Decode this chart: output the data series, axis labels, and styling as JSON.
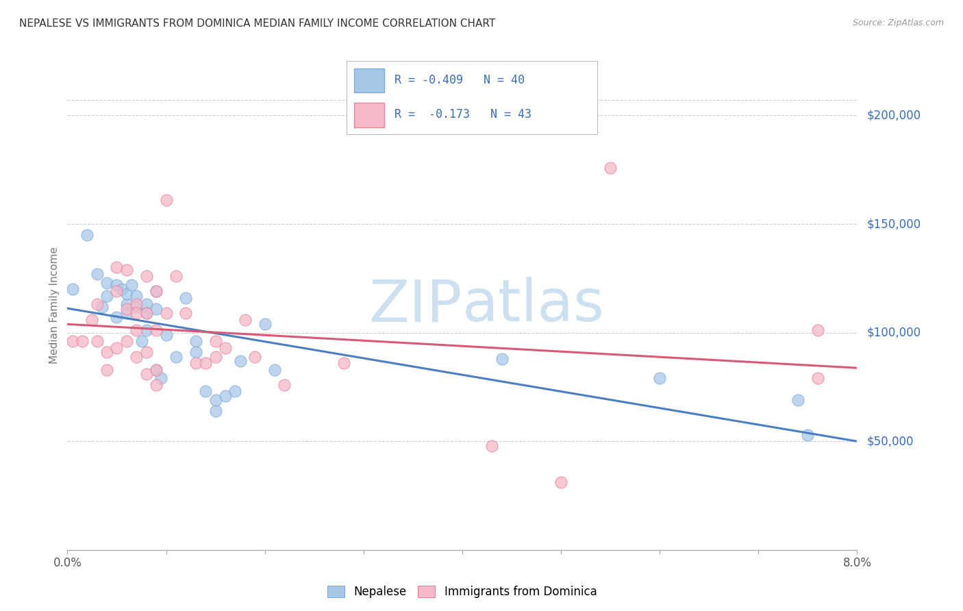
{
  "title": "NEPALESE VS IMMIGRANTS FROM DOMINICA MEDIAN FAMILY INCOME CORRELATION CHART",
  "source": "Source: ZipAtlas.com",
  "ylabel": "Median Family Income",
  "xlim": [
    0.0,
    0.08
  ],
  "ylim": [
    0,
    225000
  ],
  "xticks": [
    0.0,
    0.01,
    0.02,
    0.03,
    0.04,
    0.05,
    0.06,
    0.07,
    0.08
  ],
  "xticklabels": [
    "0.0%",
    "",
    "",
    "",
    "",
    "",
    "",
    "",
    "8.0%"
  ],
  "ytick_positions": [
    50000,
    100000,
    150000,
    200000
  ],
  "ytick_labels": [
    "$50,000",
    "$100,000",
    "$150,000",
    "$200,000"
  ],
  "legend_blue_R": "R = -0.409",
  "legend_blue_N": "N = 40",
  "legend_pink_R": "R =  -0.173",
  "legend_pink_N": "N = 43",
  "blue_scatter_color": "#a8c8e8",
  "blue_edge_color": "#7aabda",
  "pink_scatter_color": "#f5b8c8",
  "pink_edge_color": "#e8809a",
  "blue_line_color": "#4a7ec0",
  "pink_line_color": "#d85878",
  "text_color_blue": "#3a6cb8",
  "background_color": "#ffffff",
  "grid_color": "#cccccc",
  "watermark_color": "#cce0f0",
  "nepalese_x": [
    0.0005,
    0.002,
    0.003,
    0.0035,
    0.004,
    0.004,
    0.005,
    0.005,
    0.0055,
    0.006,
    0.006,
    0.006,
    0.0065,
    0.007,
    0.007,
    0.0075,
    0.008,
    0.008,
    0.008,
    0.009,
    0.009,
    0.009,
    0.0095,
    0.01,
    0.011,
    0.012,
    0.013,
    0.013,
    0.014,
    0.015,
    0.015,
    0.016,
    0.017,
    0.0175,
    0.02,
    0.021,
    0.044,
    0.06,
    0.074,
    0.075
  ],
  "nepalese_y": [
    120000,
    145000,
    127000,
    112000,
    123000,
    117000,
    122000,
    107000,
    120000,
    113000,
    109000,
    118000,
    122000,
    117000,
    112000,
    96000,
    113000,
    109000,
    101000,
    119000,
    111000,
    83000,
    79000,
    99000,
    89000,
    116000,
    96000,
    91000,
    73000,
    69000,
    64000,
    71000,
    73000,
    87000,
    104000,
    83000,
    88000,
    79000,
    69000,
    53000
  ],
  "dominica_x": [
    0.0005,
    0.0015,
    0.0025,
    0.003,
    0.003,
    0.004,
    0.004,
    0.005,
    0.005,
    0.005,
    0.006,
    0.006,
    0.006,
    0.007,
    0.007,
    0.007,
    0.007,
    0.008,
    0.008,
    0.008,
    0.008,
    0.009,
    0.009,
    0.009,
    0.009,
    0.01,
    0.01,
    0.011,
    0.012,
    0.013,
    0.014,
    0.015,
    0.015,
    0.016,
    0.018,
    0.019,
    0.022,
    0.028,
    0.043,
    0.05,
    0.055,
    0.076,
    0.076
  ],
  "dominica_y": [
    96000,
    96000,
    106000,
    113000,
    96000,
    91000,
    83000,
    130000,
    119000,
    93000,
    111000,
    96000,
    129000,
    113000,
    109000,
    101000,
    89000,
    126000,
    109000,
    91000,
    81000,
    119000,
    101000,
    83000,
    76000,
    161000,
    109000,
    126000,
    109000,
    86000,
    86000,
    96000,
    89000,
    93000,
    106000,
    89000,
    76000,
    86000,
    48000,
    31000,
    176000,
    101000,
    79000
  ]
}
